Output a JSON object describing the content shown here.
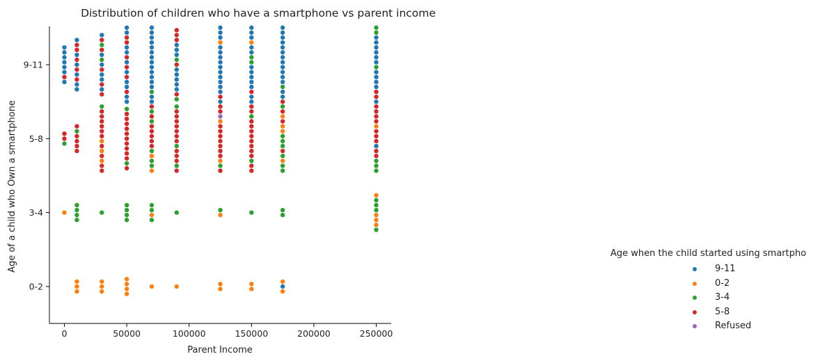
{
  "chart_data": {
    "type": "scatter",
    "subtype": "swarm",
    "title": "Distribution of children who have a smartphone vs parent income",
    "xlabel": "Parent Income",
    "ylabel": "Age of a child who Own a smartphone",
    "xlim": [
      -12000,
      262000
    ],
    "xticks": [
      0,
      50000,
      100000,
      150000,
      200000,
      250000
    ],
    "xtick_labels": [
      "0",
      "50000",
      "100000",
      "150000",
      "200000",
      "250000"
    ],
    "categories": [
      "9-11",
      "5-8",
      "3-4",
      "0-2"
    ],
    "legend": {
      "title": "Age when the child started using smartpho",
      "placement": "right",
      "entries": [
        {
          "label": "9-11",
          "color": "#1f77b4"
        },
        {
          "label": "0-2",
          "color": "#ff7f0e"
        },
        {
          "label": "3-4",
          "color": "#2ca02c"
        },
        {
          "label": "5-8",
          "color": "#d62728"
        },
        {
          "label": "Refused",
          "color": "#9467bd"
        }
      ]
    },
    "groups": [
      {
        "x": 0,
        "y": "9-11",
        "series": [
          "9-11",
          "9-11",
          "9-11",
          "9-11",
          "9-11",
          "9-11",
          "5-8",
          "9-11"
        ]
      },
      {
        "x": 10000,
        "y": "9-11",
        "series": [
          "9-11",
          "5-8",
          "5-8",
          "9-11",
          "5-8",
          "9-11",
          "5-8",
          "9-11",
          "5-8",
          "9-11",
          "9-11"
        ]
      },
      {
        "x": 30000,
        "y": "9-11",
        "series": [
          "9-11",
          "5-8",
          "3-4",
          "5-8",
          "9-11",
          "3-4",
          "9-11",
          "5-8",
          "9-11",
          "9-11",
          "5-8",
          "9-11",
          "5-8"
        ]
      },
      {
        "x": 50000,
        "y": "9-11",
        "series": [
          "9-11",
          "9-11",
          "5-8",
          "5-8",
          "9-11",
          "9-11",
          "5-8",
          "9-11",
          "5-8",
          "9-11",
          "5-8",
          "9-11",
          "9-11",
          "5-8",
          "9-11",
          "9-11"
        ]
      },
      {
        "x": 70000,
        "y": "9-11",
        "series": [
          "9-11",
          "9-11",
          "9-11",
          "9-11",
          "9-11",
          "9-11",
          "9-11",
          "9-11",
          "9-11",
          "9-11",
          "9-11",
          "9-11",
          "9-11",
          "3-4",
          "9-11",
          "9-11"
        ]
      },
      {
        "x": 90000,
        "y": "9-11",
        "series": [
          "5-8",
          "5-8",
          "5-8",
          "9-11",
          "9-11",
          "9-11",
          "3-4",
          "5-8",
          "9-11",
          "9-11",
          "9-11",
          "9-11",
          "9-11",
          "5-8",
          "3-4"
        ]
      },
      {
        "x": 125000,
        "y": "9-11",
        "series": [
          "9-11",
          "9-11",
          "9-11",
          "0-2",
          "9-11",
          "9-11",
          "9-11",
          "9-11",
          "9-11",
          "9-11",
          "9-11",
          "9-11",
          "9-11",
          "9-11",
          "5-8",
          "9-11"
        ]
      },
      {
        "x": 150000,
        "y": "9-11",
        "series": [
          "9-11",
          "9-11",
          "9-11",
          "0-2",
          "9-11",
          "9-11",
          "3-4",
          "3-4",
          "9-11",
          "9-11",
          "9-11",
          "9-11",
          "9-11",
          "5-8",
          "9-11",
          "9-11"
        ]
      },
      {
        "x": 175000,
        "y": "9-11",
        "series": [
          "9-11",
          "9-11",
          "9-11",
          "9-11",
          "9-11",
          "9-11",
          "9-11",
          "9-11",
          "9-11",
          "9-11",
          "9-11",
          "9-11",
          "3-4",
          "9-11",
          "9-11",
          "5-8"
        ]
      },
      {
        "x": 250000,
        "y": "9-11",
        "series": [
          "3-4",
          "3-4",
          "9-11",
          "9-11",
          "9-11",
          "9-11",
          "9-11",
          "9-11",
          "3-4",
          "9-11",
          "9-11",
          "9-11",
          "9-11",
          "5-8",
          "5-8",
          "9-11"
        ]
      },
      {
        "x": 0,
        "y": "5-8",
        "series": [
          "5-8",
          "5-8",
          "3-4"
        ]
      },
      {
        "x": 10000,
        "y": "5-8",
        "series": [
          "5-8",
          "3-4",
          "5-8",
          "5-8",
          "5-8",
          "5-8"
        ]
      },
      {
        "x": 30000,
        "y": "5-8",
        "series": [
          "3-4",
          "5-8",
          "5-8",
          "5-8",
          "5-8",
          "5-8",
          "5-8",
          "0-2",
          "5-8",
          "0-2",
          "5-8",
          "0-2",
          "5-8",
          "5-8"
        ]
      },
      {
        "x": 50000,
        "y": "5-8",
        "series": [
          "3-4",
          "5-8",
          "5-8",
          "5-8",
          "5-8",
          "5-8",
          "5-8",
          "5-8",
          "5-8",
          "5-8",
          "5-8",
          "3-4",
          "5-8"
        ]
      },
      {
        "x": 70000,
        "y": "5-8",
        "series": [
          "5-8",
          "3-4",
          "5-8",
          "3-4",
          "5-8",
          "5-8",
          "5-8",
          "5-8",
          "5-8",
          "3-4",
          "0-2",
          "3-4",
          "3-4",
          "0-2"
        ]
      },
      {
        "x": 90000,
        "y": "5-8",
        "series": [
          "3-4",
          "5-8",
          "5-8",
          "5-8",
          "5-8",
          "5-8",
          "5-8",
          "5-8",
          "3-4",
          "5-8",
          "5-8",
          "5-8",
          "3-4",
          "5-8"
        ]
      },
      {
        "x": 125000,
        "y": "5-8",
        "series": [
          "5-8",
          "5-8",
          "Refused",
          "0-2",
          "5-8",
          "5-8",
          "5-8",
          "5-8",
          "5-8",
          "5-8",
          "5-8",
          "0-2",
          "3-4",
          "5-8"
        ]
      },
      {
        "x": 150000,
        "y": "5-8",
        "series": [
          "5-8",
          "5-8",
          "3-4",
          "5-8",
          "5-8",
          "5-8",
          "5-8",
          "5-8",
          "5-8",
          "5-8",
          "5-8",
          "3-4",
          "5-8",
          "5-8"
        ]
      },
      {
        "x": 175000,
        "y": "5-8",
        "series": [
          "3-4",
          "5-8",
          "0-2",
          "5-8",
          "0-2",
          "0-2",
          "3-4",
          "3-4",
          "3-4",
          "5-8",
          "3-4",
          "0-2",
          "3-4",
          "3-4"
        ]
      },
      {
        "x": 250000,
        "y": "5-8",
        "series": [
          "5-8",
          "5-8",
          "5-8",
          "5-8",
          "0-2",
          "5-8",
          "5-8",
          "5-8",
          "9-11",
          "5-8",
          "5-8",
          "3-4",
          "3-4",
          "3-4"
        ]
      },
      {
        "x": 0,
        "y": "3-4",
        "series": [
          "0-2"
        ]
      },
      {
        "x": 10000,
        "y": "3-4",
        "series": [
          "3-4",
          "3-4",
          "3-4",
          "3-4"
        ]
      },
      {
        "x": 30000,
        "y": "3-4",
        "series": [
          "3-4"
        ]
      },
      {
        "x": 50000,
        "y": "3-4",
        "series": [
          "3-4",
          "3-4",
          "3-4",
          "3-4"
        ]
      },
      {
        "x": 70000,
        "y": "3-4",
        "series": [
          "3-4",
          "3-4",
          "0-2",
          "3-4"
        ]
      },
      {
        "x": 90000,
        "y": "3-4",
        "series": [
          "3-4"
        ]
      },
      {
        "x": 125000,
        "y": "3-4",
        "series": [
          "3-4",
          "0-2"
        ]
      },
      {
        "x": 150000,
        "y": "3-4",
        "series": [
          "3-4"
        ]
      },
      {
        "x": 175000,
        "y": "3-4",
        "series": [
          "3-4",
          "3-4"
        ]
      },
      {
        "x": 250000,
        "y": "3-4",
        "series": [
          "0-2",
          "3-4",
          "3-4",
          "3-4",
          "0-2",
          "0-2",
          "0-2",
          "3-4"
        ]
      },
      {
        "x": 10000,
        "y": "0-2",
        "series": [
          "0-2",
          "0-2",
          "0-2"
        ]
      },
      {
        "x": 30000,
        "y": "0-2",
        "series": [
          "0-2",
          "0-2",
          "0-2"
        ]
      },
      {
        "x": 50000,
        "y": "0-2",
        "series": [
          "0-2",
          "0-2",
          "0-2",
          "0-2"
        ]
      },
      {
        "x": 70000,
        "y": "0-2",
        "series": [
          "0-2"
        ]
      },
      {
        "x": 90000,
        "y": "0-2",
        "series": [
          "0-2"
        ]
      },
      {
        "x": 125000,
        "y": "0-2",
        "series": [
          "0-2",
          "0-2"
        ]
      },
      {
        "x": 150000,
        "y": "0-2",
        "series": [
          "0-2",
          "0-2"
        ]
      },
      {
        "x": 175000,
        "y": "0-2",
        "series": [
          "0-2",
          "9-11",
          "0-2"
        ]
      }
    ]
  }
}
